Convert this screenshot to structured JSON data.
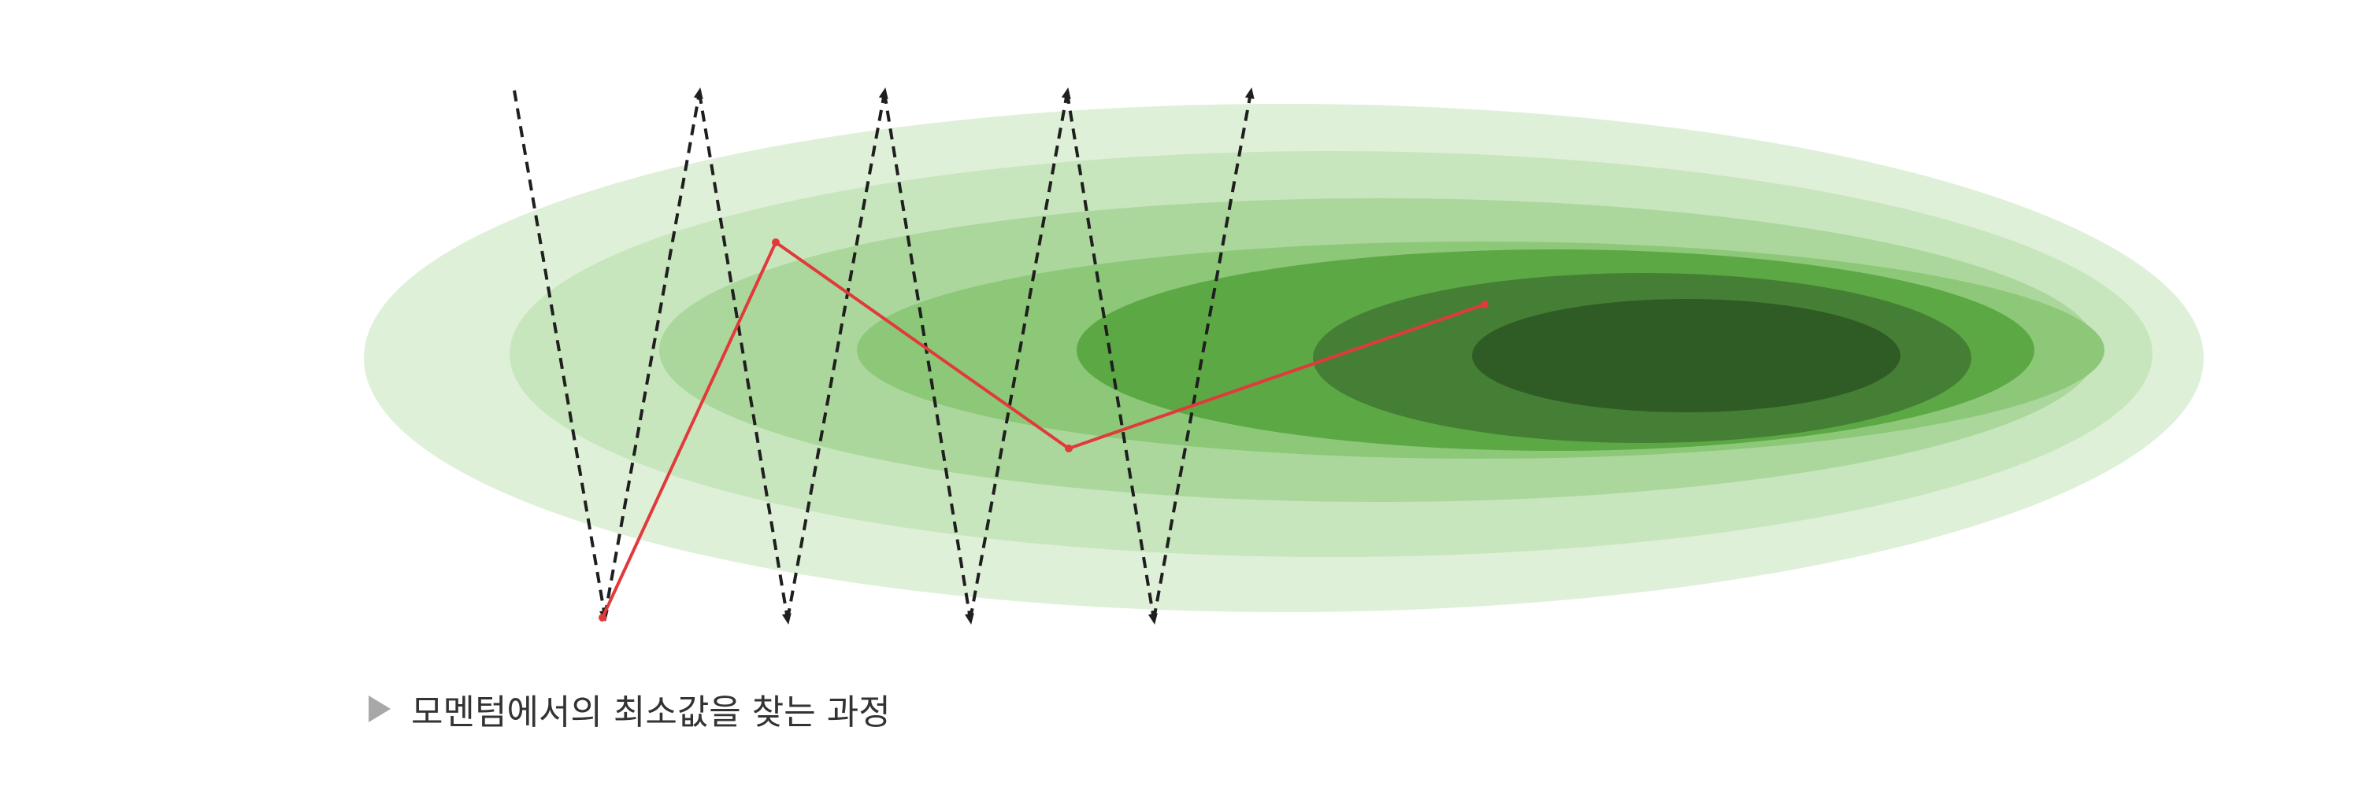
{
  "caption": {
    "marker": "▶",
    "text": "모멘텀에서의 최소값을 찾는 과정"
  },
  "colors": {
    "contour_levels": [
      "#dff0d8",
      "#c8e6bd",
      "#abd79c",
      "#8cc878",
      "#5ca844",
      "#457f35",
      "#2f5c24"
    ],
    "momentum_path": "#e03a3a",
    "sgd_path": "#1f1f1f",
    "caption_marker": "#a8a8a8",
    "caption_text": "#333333"
  }
}
